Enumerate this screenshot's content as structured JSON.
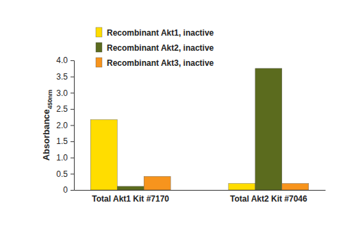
{
  "chart_data": {
    "type": "bar",
    "y_label": "Absorbance450nm",
    "categories": [
      "Total Akt1 Kit #7170",
      "Total Akt2 Kit #7046"
    ],
    "series": [
      {
        "name": "Recombinant Akt1, inactive",
        "color": "#ffdd00",
        "values": [
          2.17,
          0.2
        ]
      },
      {
        "name": "Recombinant Akt2, inactive",
        "color": "#5b6b1e",
        "values": [
          0.11,
          3.75
        ]
      },
      {
        "name": "Recombinant Akt3, inactive",
        "color": "#f7941d",
        "values": [
          0.42,
          0.2
        ]
      }
    ],
    "ylim": [
      0,
      4
    ],
    "yticks": [
      0,
      0.5,
      {
        "value": 1,
        "label": "1.0"
      },
      1.5,
      {
        "value": 2,
        "label": "2.0"
      },
      2.5,
      {
        "value": 3,
        "label": "3.0"
      },
      3.5,
      {
        "value": 4,
        "label": "4.0"
      }
    ],
    "legend": "top-left",
    "grid": false
  }
}
